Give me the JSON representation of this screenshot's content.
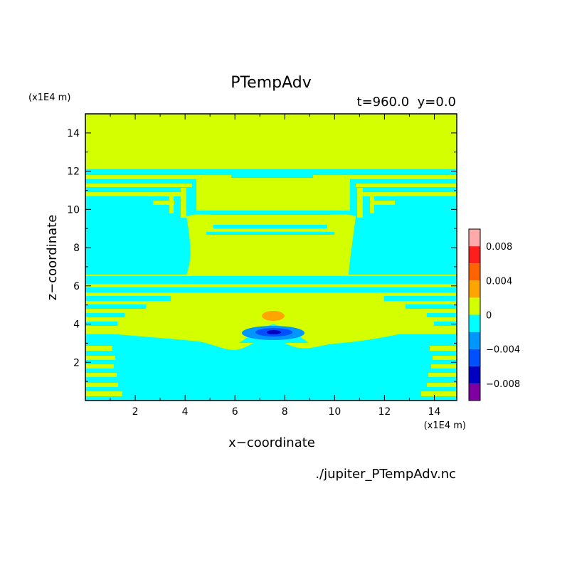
{
  "chart_data": {
    "type": "heatmap",
    "title": "PTempAdv",
    "subtitle": "t=960.0  y=0.0",
    "xlabel": "x−coordinate",
    "ylabel": "z−coordinate",
    "x_unit": "(x1E4 m)",
    "y_unit": "(x1E4 m)",
    "source": "./jupiter_PTempAdv.nc",
    "xlim": [
      0,
      14.9
    ],
    "ylim": [
      0,
      15
    ],
    "x_ticks": [
      2,
      4,
      6,
      8,
      10,
      12,
      14
    ],
    "y_ticks": [
      2,
      4,
      6,
      8,
      10,
      12,
      14
    ],
    "x_tick_labels": [
      "2",
      "4",
      "6",
      "8",
      "10",
      "12",
      "14"
    ],
    "y_tick_labels": [
      "2",
      "4",
      "6",
      "8",
      "10",
      "12",
      "14"
    ],
    "colorbar": {
      "levels": [
        -0.01,
        -0.008,
        -0.006,
        -0.004,
        -0.002,
        0,
        0.002,
        0.004,
        0.006,
        0.008,
        0.01
      ],
      "colors": [
        "#7f00a0",
        "#0000c0",
        "#0050ff",
        "#0096ff",
        "#00ffff",
        "#d4ff00",
        "#ffa500",
        "#ff6400",
        "#ff1e1e",
        "#ffaaaa"
      ],
      "tick_values": [
        0.008,
        0.004,
        0,
        -0.004,
        -0.008
      ],
      "tick_labels": [
        "0.008",
        "0.004",
        "0",
        "−0.004",
        "−0.008"
      ]
    },
    "regions": [
      {
        "level": "0 to 0.002",
        "color": "#d4ff00",
        "where": "background: z>12, 6–12 central column, 3.5–6 middle band"
      },
      {
        "level": "-0.002 to 0",
        "color": "#00ffff",
        "where": "z<3.5 lower layer, 6.5–12 side lobes, thin horizontal stripes"
      },
      {
        "level": "0.002 to 0.004",
        "color": "#ffa500",
        "peak": {
          "x": 7.6,
          "z": 4.4
        }
      },
      {
        "level": "-0.004 to -0.002",
        "color": "#0096ff",
        "peak": {
          "x": 7.6,
          "z": 3.55
        }
      },
      {
        "level": "-0.006 to -0.004",
        "color": "#0050ff",
        "peak": {
          "x": 7.6,
          "z": 3.5
        }
      },
      {
        "level": "-0.008 to -0.006",
        "color": "#0000c0",
        "peak": {
          "x": 7.6,
          "z": 3.5
        }
      }
    ]
  }
}
